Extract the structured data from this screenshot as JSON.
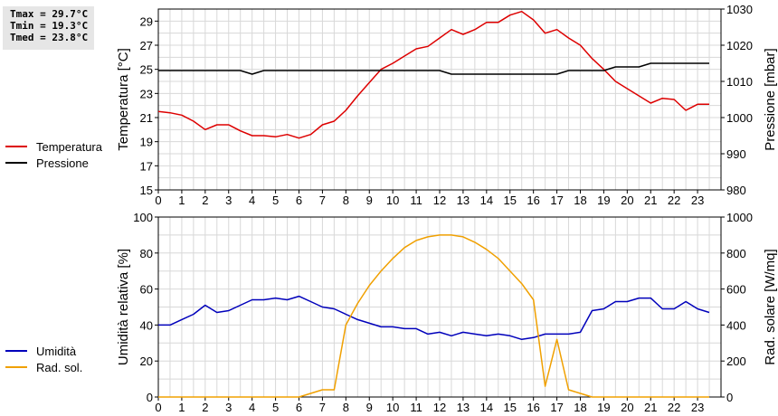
{
  "stats": {
    "tmax": "Tmax = 29.7°C",
    "tmin": "Tmin = 19.3°C",
    "tmed": "Tmed = 23.8°C"
  },
  "chart_data": [
    {
      "type": "line",
      "ylabel": "Temperatura [°C]",
      "y2label": "Pressione [mbar]",
      "x_ticks": [
        0,
        1,
        2,
        3,
        4,
        5,
        6,
        7,
        8,
        9,
        10,
        11,
        12,
        13,
        14,
        15,
        16,
        17,
        18,
        19,
        20,
        21,
        22,
        23
      ],
      "ylim": [
        15,
        30
      ],
      "y_ticks": [
        15,
        17,
        19,
        21,
        23,
        25,
        27,
        29
      ],
      "y2lim": [
        980,
        1030
      ],
      "y2_ticks": [
        980,
        990,
        1000,
        1010,
        1020,
        1030
      ],
      "grid": true,
      "legend": [
        {
          "name": "Temperatura",
          "color": "#dd0000"
        },
        {
          "name": "Pressione",
          "color": "#000000"
        }
      ],
      "series": [
        {
          "name": "Temperatura",
          "axis": "left",
          "color": "#dd0000",
          "x": [
            0,
            0.5,
            1,
            1.5,
            2,
            2.5,
            3,
            3.5,
            4,
            4.5,
            5,
            5.5,
            6,
            6.5,
            7,
            7.5,
            8,
            8.5,
            9,
            9.5,
            10,
            10.5,
            11,
            11.5,
            12,
            12.5,
            13,
            13.5,
            14,
            14.5,
            15,
            15.5,
            16,
            16.5,
            17,
            17.5,
            18,
            18.5,
            19,
            19.5,
            20,
            20.5,
            21,
            21.5,
            22,
            22.5,
            23,
            23.5
          ],
          "y": [
            21.5,
            21.4,
            21.2,
            20.7,
            20.0,
            20.4,
            20.4,
            19.9,
            19.5,
            19.5,
            19.4,
            19.6,
            19.3,
            19.6,
            20.4,
            20.7,
            21.6,
            22.8,
            23.9,
            25.0,
            25.5,
            26.1,
            26.7,
            26.9,
            27.6,
            28.3,
            27.9,
            28.3,
            28.9,
            28.9,
            29.5,
            29.8,
            29.1,
            28.0,
            28.3,
            27.6,
            27.0,
            25.9,
            25.0,
            24.0,
            23.4,
            22.8,
            22.2,
            22.6,
            22.5,
            21.6,
            22.1,
            22.1
          ]
        },
        {
          "name": "Pressione",
          "axis": "right",
          "color": "#000000",
          "x": [
            0,
            0.5,
            1,
            1.5,
            2,
            2.5,
            3,
            3.5,
            4,
            4.5,
            5,
            5.5,
            6,
            6.5,
            7,
            7.5,
            8,
            8.5,
            9,
            9.5,
            10,
            10.5,
            11,
            11.5,
            12,
            12.5,
            13,
            13.5,
            14,
            14.5,
            15,
            15.5,
            16,
            16.5,
            17,
            17.5,
            18,
            18.5,
            19,
            19.5,
            20,
            20.5,
            21,
            21.5,
            22,
            22.5,
            23,
            23.5
          ],
          "y": [
            1013,
            1013,
            1013,
            1013,
            1013,
            1013,
            1013,
            1013,
            1012,
            1013,
            1013,
            1013,
            1013,
            1013,
            1013,
            1013,
            1013,
            1013,
            1013,
            1013,
            1013,
            1013,
            1013,
            1013,
            1013,
            1012,
            1012,
            1012,
            1012,
            1012,
            1012,
            1012,
            1012,
            1012,
            1012,
            1013,
            1013,
            1013,
            1013,
            1014,
            1014,
            1014,
            1015,
            1015,
            1015,
            1015,
            1015,
            1015
          ]
        }
      ]
    },
    {
      "type": "line",
      "ylabel": "Umidità relativa [%]",
      "y2label": "Rad. solare [W/mq]",
      "x_ticks": [
        0,
        1,
        2,
        3,
        4,
        5,
        6,
        7,
        8,
        9,
        10,
        11,
        12,
        13,
        14,
        15,
        16,
        17,
        18,
        19,
        20,
        21,
        22,
        23
      ],
      "ylim": [
        0,
        100
      ],
      "y_ticks": [
        0,
        20,
        40,
        60,
        80,
        100
      ],
      "y2lim": [
        0,
        1000
      ],
      "y2_ticks": [
        0,
        200,
        400,
        600,
        800,
        1000
      ],
      "grid": true,
      "legend": [
        {
          "name": "Umidità",
          "color": "#0000bb"
        },
        {
          "name": "Rad. sol.",
          "color": "#f0a000"
        }
      ],
      "series": [
        {
          "name": "Umidità",
          "axis": "left",
          "color": "#0000bb",
          "x": [
            0,
            0.5,
            1,
            1.5,
            2,
            2.5,
            3,
            3.5,
            4,
            4.5,
            5,
            5.5,
            6,
            6.5,
            7,
            7.5,
            8,
            8.5,
            9,
            9.5,
            10,
            10.5,
            11,
            11.5,
            12,
            12.5,
            13,
            13.5,
            14,
            14.5,
            15,
            15.5,
            16,
            16.5,
            17,
            17.5,
            18,
            18.5,
            19,
            19.5,
            20,
            20.5,
            21,
            21.5,
            22,
            22.5,
            23,
            23.5
          ],
          "y": [
            40,
            40,
            43,
            46,
            51,
            47,
            48,
            51,
            54,
            54,
            55,
            54,
            56,
            53,
            50,
            49,
            46,
            43,
            41,
            39,
            39,
            38,
            38,
            35,
            36,
            34,
            36,
            35,
            34,
            35,
            34,
            32,
            33,
            35,
            35,
            35,
            36,
            48,
            49,
            53,
            53,
            55,
            55,
            49,
            49,
            53,
            49,
            47
          ]
        },
        {
          "name": "Rad. sol.",
          "axis": "right",
          "color": "#f0a000",
          "x": [
            0,
            1,
            2,
            3,
            4,
            5,
            6,
            6.5,
            7,
            7.5,
            8,
            8.5,
            9,
            9.5,
            10,
            10.5,
            11,
            11.5,
            12,
            12.5,
            13,
            13.5,
            14,
            14.5,
            15,
            15.5,
            16,
            16.5,
            17,
            17.5,
            18,
            18.5,
            19,
            20,
            21,
            22,
            23,
            23.5
          ],
          "y": [
            0,
            0,
            0,
            0,
            0,
            0,
            0,
            20,
            40,
            40,
            400,
            520,
            620,
            700,
            770,
            830,
            870,
            890,
            900,
            900,
            890,
            860,
            820,
            770,
            700,
            630,
            540,
            60,
            320,
            40,
            20,
            0,
            0,
            0,
            0,
            0,
            0,
            0
          ]
        }
      ]
    }
  ]
}
